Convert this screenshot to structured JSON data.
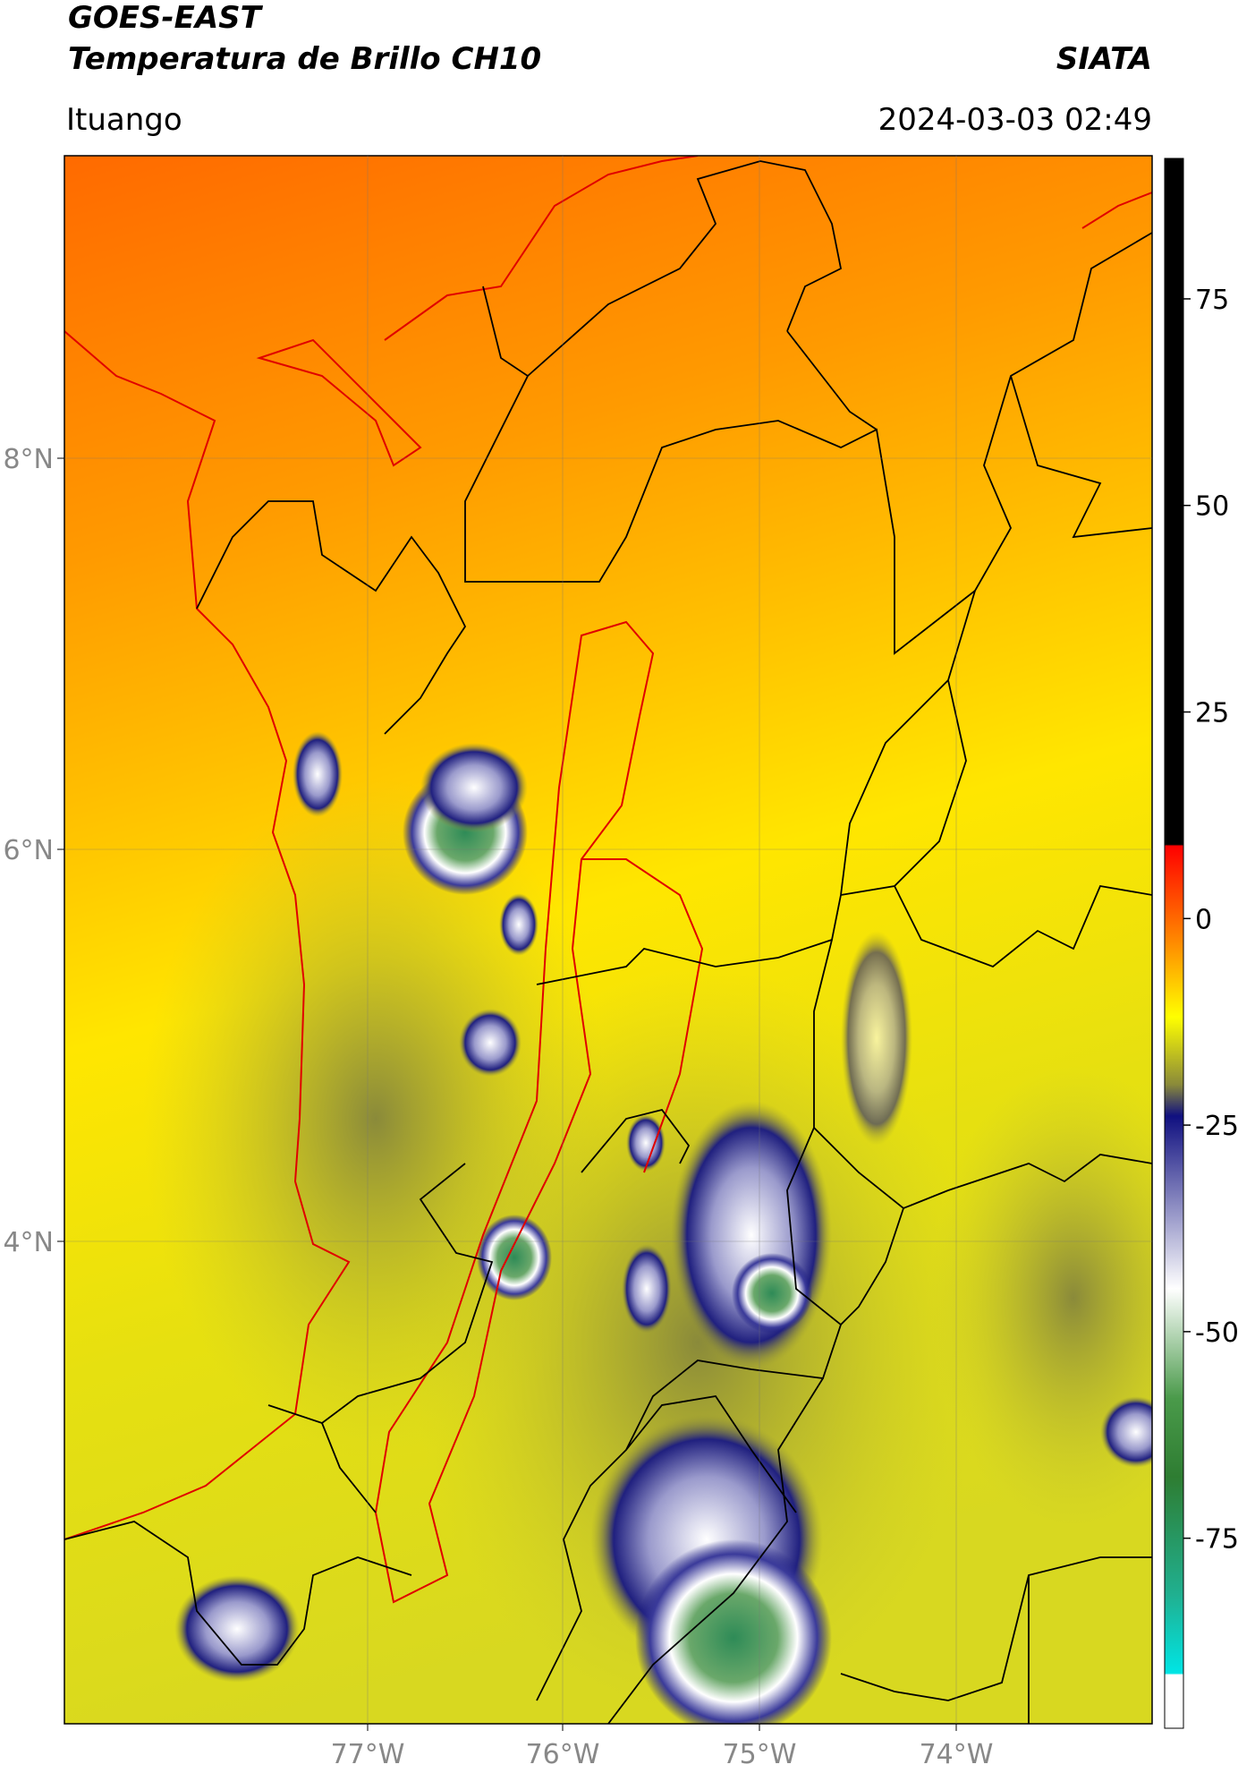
{
  "header": {
    "title": "GOES-EAST",
    "subtitle": "Temperatura de Brillo CH10",
    "source": "SIATA",
    "location": "Ituango",
    "datetime": "2024-03-03 02:49"
  },
  "map": {
    "lat_labels": [
      "8°N",
      "6°N",
      "4°N"
    ],
    "lon_labels": [
      "77°W",
      "76°W",
      "75°W",
      "74°W"
    ]
  },
  "colorbar": {
    "range": [
      -98,
      92
    ],
    "ticks": [
      75,
      50,
      25,
      0,
      -25,
      -50,
      -75
    ]
  }
}
